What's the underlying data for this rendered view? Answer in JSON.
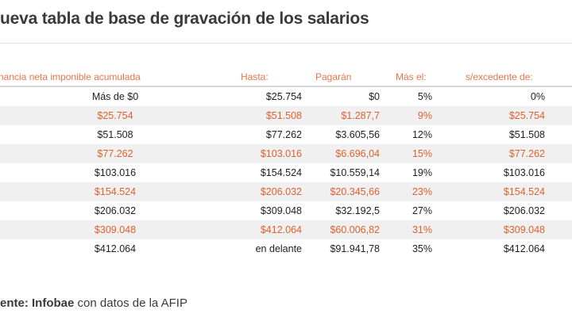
{
  "title": "ueva tabla de base de gravación de los salarios",
  "table": {
    "headers": [
      "nancia neta imponible acumulada",
      "Hasta:",
      "Pagarán",
      "Más el:",
      "s/excedente de:"
    ],
    "rows": [
      [
        "Más de $0",
        "$25.754",
        "$0",
        "5%",
        "0%"
      ],
      [
        "$25.754",
        "$51.508",
        "$1.287,7",
        "9%",
        "$25.754"
      ],
      [
        "$51.508",
        "$77.262",
        "$3.605,56",
        "12%",
        "$51.508"
      ],
      [
        "$77.262",
        "$103.016",
        "$6.696,04",
        "15%",
        "$77.262"
      ],
      [
        "$103.016",
        "$154.524",
        "$10.559,14",
        "19%",
        "$103.016"
      ],
      [
        "$154.524",
        "$206.032",
        "$20.345,66",
        "23%",
        "$154.524"
      ],
      [
        "$206.032",
        "$309.048",
        "$32.192,5",
        "27%",
        "$206.032"
      ],
      [
        "$309.048",
        "$412.064",
        "$60.006,82",
        "31%",
        "$309.048"
      ],
      [
        "$412.064",
        "en delante",
        "$91.941,78",
        "35%",
        "$412.064"
      ]
    ]
  },
  "source": {
    "prefix": "ente:",
    "brand": "Infobae",
    "rest": "con datos de la AFIP"
  },
  "colors": {
    "accent": "#e8754a",
    "text": "#1e1e1e",
    "stripe": "#f0f0f0"
  }
}
